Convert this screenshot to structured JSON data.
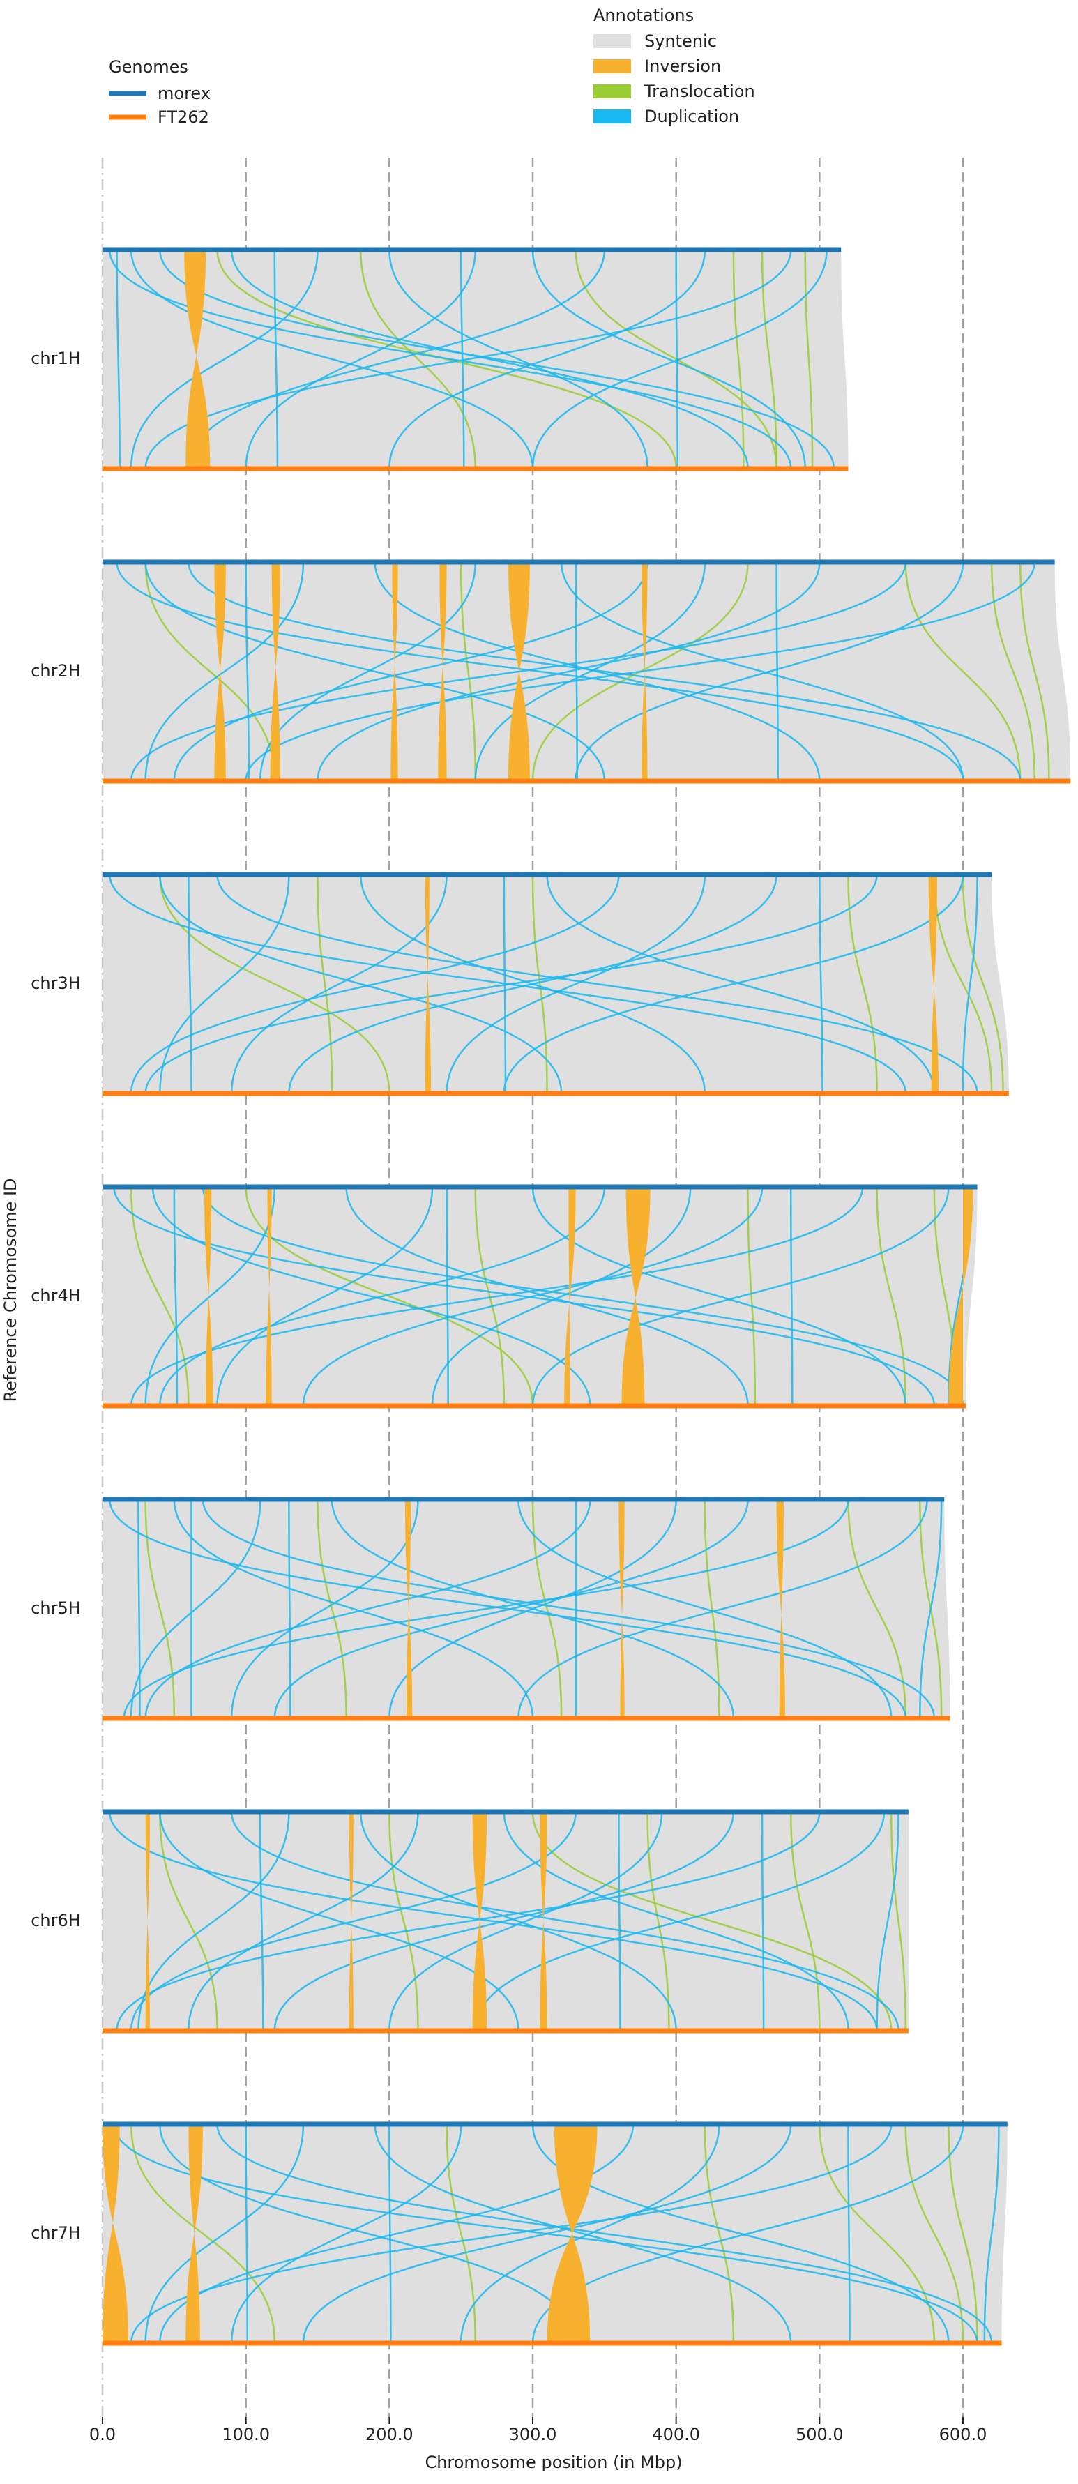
{
  "chart_data": {
    "type": "synteny",
    "x_label": "Chromosome position (in Mbp)",
    "y_label": "Reference Chromosome ID",
    "xlim": [
      0,
      680
    ],
    "xticks": [
      {
        "value": 0,
        "label": "0.0"
      },
      {
        "value": 100,
        "label": "100.0"
      },
      {
        "value": 200,
        "label": "200.0"
      },
      {
        "value": 300,
        "label": "300.0"
      },
      {
        "value": 400,
        "label": "400.0"
      },
      {
        "value": 500,
        "label": "500.0"
      },
      {
        "value": 600,
        "label": "600.0"
      }
    ],
    "grid": true,
    "genomes_title": "Genomes",
    "annotations_title": "Annotations",
    "categories": [
      "chr1H",
      "chr2H",
      "chr3H",
      "chr4H",
      "chr5H",
      "chr6H",
      "chr7H"
    ],
    "series": [
      {
        "name": "morex",
        "color": "#1f77b4",
        "values": [
          515,
          664,
          620,
          610,
          587,
          562,
          631
        ]
      },
      {
        "name": "FT262",
        "color": "#ff7f0e",
        "values": [
          520,
          675,
          632,
          602,
          591,
          562,
          627
        ]
      }
    ],
    "annotations": [
      {
        "name": "Syntenic",
        "color": "#dfdfdf"
      },
      {
        "name": "Inversion",
        "color": "#f7b12f"
      },
      {
        "name": "Translocation",
        "color": "#9acd32"
      },
      {
        "name": "Duplication",
        "color": "#17b9f0"
      }
    ],
    "chromosomes": [
      {
        "inversions": [
          [
            57,
            72,
            58,
            75
          ]
        ],
        "translocations": [
          [
            80,
            400
          ],
          [
            330,
            470
          ],
          [
            460,
            470
          ],
          [
            490,
            495
          ],
          [
            180,
            260
          ],
          [
            440,
            447
          ]
        ],
        "duplications": [
          [
            5,
            480
          ],
          [
            20,
            300
          ],
          [
            40,
            510
          ],
          [
            90,
            450
          ],
          [
            150,
            20
          ],
          [
            200,
            380
          ],
          [
            260,
            100
          ],
          [
            300,
            490
          ],
          [
            350,
            60
          ],
          [
            420,
            200
          ],
          [
            480,
            30
          ],
          [
            505,
            300
          ],
          [
            120,
            122
          ],
          [
            250,
            252
          ],
          [
            400,
            401
          ],
          [
            10,
            12
          ]
        ]
      },
      {
        "inversions": [
          [
            78,
            86,
            78,
            86
          ],
          [
            118,
            124,
            117,
            124
          ],
          [
            202,
            206,
            201,
            206
          ],
          [
            235,
            240,
            234,
            240
          ],
          [
            283,
            298,
            283,
            298
          ],
          [
            376,
            380,
            376,
            380
          ]
        ],
        "translocations": [
          [
            620,
            650
          ],
          [
            560,
            640
          ],
          [
            30,
            120
          ],
          [
            250,
            260
          ],
          [
            450,
            300
          ],
          [
            640,
            660
          ]
        ],
        "duplications": [
          [
            10,
            600
          ],
          [
            30,
            350
          ],
          [
            60,
            640
          ],
          [
            140,
            30
          ],
          [
            190,
            500
          ],
          [
            260,
            110
          ],
          [
            320,
            600
          ],
          [
            380,
            50
          ],
          [
            420,
            260
          ],
          [
            500,
            150
          ],
          [
            560,
            20
          ],
          [
            600,
            330
          ],
          [
            650,
            100
          ],
          [
            100,
            102
          ],
          [
            330,
            331
          ],
          [
            470,
            471
          ]
        ]
      },
      {
        "inversions": [
          [
            225,
            228,
            225,
            229
          ],
          [
            576,
            582,
            578,
            583
          ]
        ],
        "translocations": [
          [
            40,
            200
          ],
          [
            580,
            620
          ],
          [
            600,
            628
          ],
          [
            300,
            310
          ],
          [
            150,
            160
          ],
          [
            520,
            540
          ]
        ],
        "duplications": [
          [
            5,
            560
          ],
          [
            40,
            320
          ],
          [
            80,
            610
          ],
          [
            130,
            40
          ],
          [
            180,
            420
          ],
          [
            240,
            90
          ],
          [
            310,
            580
          ],
          [
            360,
            20
          ],
          [
            420,
            240
          ],
          [
            470,
            130
          ],
          [
            540,
            30
          ],
          [
            600,
            280
          ],
          [
            610,
            600
          ],
          [
            60,
            62
          ],
          [
            280,
            281
          ],
          [
            500,
            502
          ]
        ]
      },
      {
        "inversions": [
          [
            71,
            76,
            72,
            77
          ],
          [
            115,
            118,
            114,
            118
          ],
          [
            325,
            330,
            322,
            326
          ],
          [
            365,
            382,
            362,
            378
          ],
          [
            600,
            607,
            590,
            600
          ]
        ],
        "translocations": [
          [
            20,
            60
          ],
          [
            540,
            560
          ],
          [
            580,
            595
          ],
          [
            260,
            280
          ],
          [
            100,
            300
          ],
          [
            450,
            455
          ]
        ],
        "duplications": [
          [
            8,
            580
          ],
          [
            35,
            340
          ],
          [
            70,
            600
          ],
          [
            120,
            30
          ],
          [
            170,
            450
          ],
          [
            230,
            80
          ],
          [
            300,
            560
          ],
          [
            350,
            40
          ],
          [
            410,
            230
          ],
          [
            460,
            140
          ],
          [
            530,
            20
          ],
          [
            590,
            300
          ],
          [
            605,
            590
          ],
          [
            50,
            52
          ],
          [
            240,
            241
          ],
          [
            480,
            481
          ]
        ]
      },
      {
        "inversions": [
          [
            211,
            215,
            212,
            216
          ],
          [
            360,
            364,
            361,
            364
          ],
          [
            470,
            475,
            472,
            476
          ]
        ],
        "translocations": [
          [
            30,
            50
          ],
          [
            520,
            560
          ],
          [
            570,
            585
          ],
          [
            150,
            170
          ],
          [
            300,
            320
          ],
          [
            420,
            430
          ]
        ],
        "duplications": [
          [
            5,
            560
          ],
          [
            50,
            300
          ],
          [
            70,
            580
          ],
          [
            110,
            20
          ],
          [
            160,
            440
          ],
          [
            220,
            90
          ],
          [
            290,
            550
          ],
          [
            340,
            30
          ],
          [
            400,
            200
          ],
          [
            450,
            120
          ],
          [
            520,
            15
          ],
          [
            575,
            290
          ],
          [
            585,
            570
          ],
          [
            25,
            26
          ],
          [
            62,
            62
          ],
          [
            130,
            131
          ],
          [
            330,
            330
          ]
        ]
      },
      {
        "inversions": [
          [
            30,
            33,
            30,
            33
          ],
          [
            172,
            175,
            172,
            175
          ],
          [
            258,
            268,
            258,
            268
          ],
          [
            305,
            310,
            305,
            310
          ]
        ],
        "translocations": [
          [
            300,
            550
          ],
          [
            40,
            80
          ],
          [
            480,
            500
          ],
          [
            550,
            560
          ],
          [
            200,
            220
          ],
          [
            380,
            395
          ]
        ],
        "duplications": [
          [
            5,
            540
          ],
          [
            40,
            290
          ],
          [
            90,
            555
          ],
          [
            130,
            25
          ],
          [
            180,
            400
          ],
          [
            220,
            60
          ],
          [
            280,
            520
          ],
          [
            330,
            20
          ],
          [
            390,
            200
          ],
          [
            440,
            120
          ],
          [
            500,
            10
          ],
          [
            545,
            260
          ],
          [
            555,
            540
          ],
          [
            110,
            112
          ],
          [
            360,
            361
          ],
          [
            460,
            461
          ]
        ]
      },
      {
        "inversions": [
          [
            0,
            12,
            0,
            18
          ],
          [
            60,
            70,
            58,
            68
          ],
          [
            315,
            345,
            310,
            340
          ]
        ],
        "translocations": [
          [
            20,
            120
          ],
          [
            500,
            580
          ],
          [
            590,
            610
          ],
          [
            240,
            260
          ],
          [
            420,
            440
          ],
          [
            560,
            600
          ]
        ],
        "duplications": [
          [
            8,
            610
          ],
          [
            40,
            330
          ],
          [
            80,
            620
          ],
          [
            140,
            30
          ],
          [
            190,
            480
          ],
          [
            250,
            90
          ],
          [
            300,
            590
          ],
          [
            370,
            40
          ],
          [
            430,
            250
          ],
          [
            480,
            140
          ],
          [
            550,
            20
          ],
          [
            600,
            300
          ],
          [
            625,
            615
          ],
          [
            100,
            101
          ],
          [
            200,
            201
          ],
          [
            520,
            521
          ]
        ]
      }
    ]
  }
}
